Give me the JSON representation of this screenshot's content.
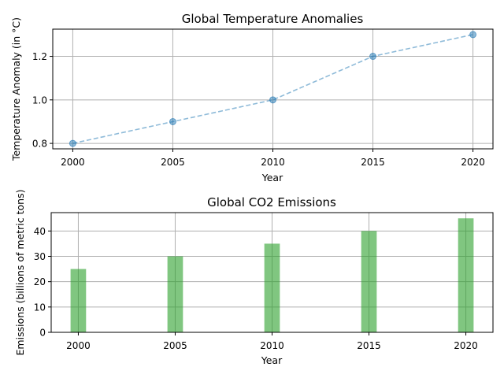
{
  "chart_data": [
    {
      "type": "line",
      "title": "Global Temperature Anomalies",
      "xlabel": "Year",
      "ylabel": "Temperature Anomaly (in °C)",
      "x": [
        2000,
        2005,
        2010,
        2015,
        2020
      ],
      "series": [
        {
          "values": [
            0.8,
            0.9,
            1.0,
            1.2,
            1.3
          ]
        }
      ],
      "xlim": [
        1999,
        2021
      ],
      "ylim": [
        0.775,
        1.325
      ],
      "xticks": [
        2000,
        2005,
        2010,
        2015,
        2020
      ],
      "yticks": [
        0.8,
        1.0,
        1.2
      ],
      "ytick_labels": [
        "0.8",
        "1.0",
        "1.2"
      ],
      "grid": true,
      "line_style": "dashed",
      "marker": "circle",
      "color": "#1f77b4"
    },
    {
      "type": "bar",
      "title": "Global CO2 Emissions",
      "xlabel": "Year",
      "ylabel": "Emissions (billions of metric tons)",
      "x": [
        2000,
        2005,
        2010,
        2015,
        2020
      ],
      "series": [
        {
          "values": [
            25,
            30,
            35,
            40,
            45
          ]
        }
      ],
      "xlim": [
        1998.6,
        2021.4
      ],
      "ylim": [
        0,
        47.25
      ],
      "xticks": [
        2000,
        2005,
        2010,
        2015,
        2020
      ],
      "yticks": [
        0,
        10,
        20,
        30,
        40
      ],
      "ytick_labels": [
        "0",
        "10",
        "20",
        "30",
        "40"
      ],
      "grid": true,
      "color": "#2ca02c"
    }
  ]
}
